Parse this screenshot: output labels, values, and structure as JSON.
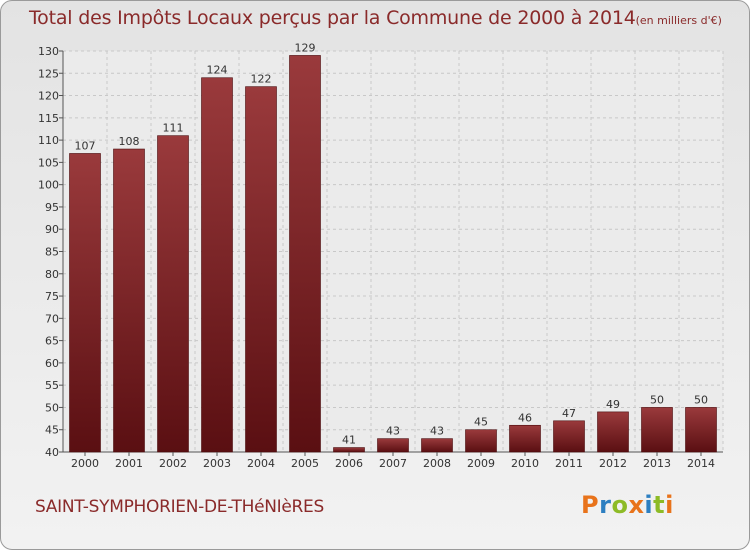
{
  "title": "Total des Impôts Locaux perçus par la Commune de 2000 à 2014",
  "unit": "(en milliers d'€)",
  "commune": "SAINT-SYMPHORIEN-DE-THéNIèRES",
  "logo": {
    "text": "Proxiti",
    "colors": [
      "#e8731b",
      "#2d7fc1",
      "#8dbb26",
      "#e8731b",
      "#2d7fc1",
      "#8dbb26",
      "#e8731b"
    ]
  },
  "colors": {
    "title": "#8a2a2a",
    "bar_top": "#9a3a3c",
    "bar_bottom": "#5a0f12"
  },
  "chart_data": {
    "type": "bar",
    "title": "Total des Impôts Locaux perçus par la Commune de 2000 à 2014",
    "categories": [
      "2000",
      "2001",
      "2002",
      "2003",
      "2004",
      "2005",
      "2006",
      "2007",
      "2008",
      "2009",
      "2010",
      "2011",
      "2012",
      "2013",
      "2014"
    ],
    "values": [
      107,
      108,
      111,
      124,
      122,
      129,
      41,
      43,
      43,
      45,
      46,
      47,
      49,
      50,
      50
    ],
    "ylim": [
      40,
      130
    ],
    "yticks": [
      40,
      45,
      50,
      55,
      60,
      65,
      70,
      75,
      80,
      85,
      90,
      95,
      100,
      105,
      110,
      115,
      120,
      125,
      130
    ],
    "grid": true,
    "data_labels": true
  }
}
